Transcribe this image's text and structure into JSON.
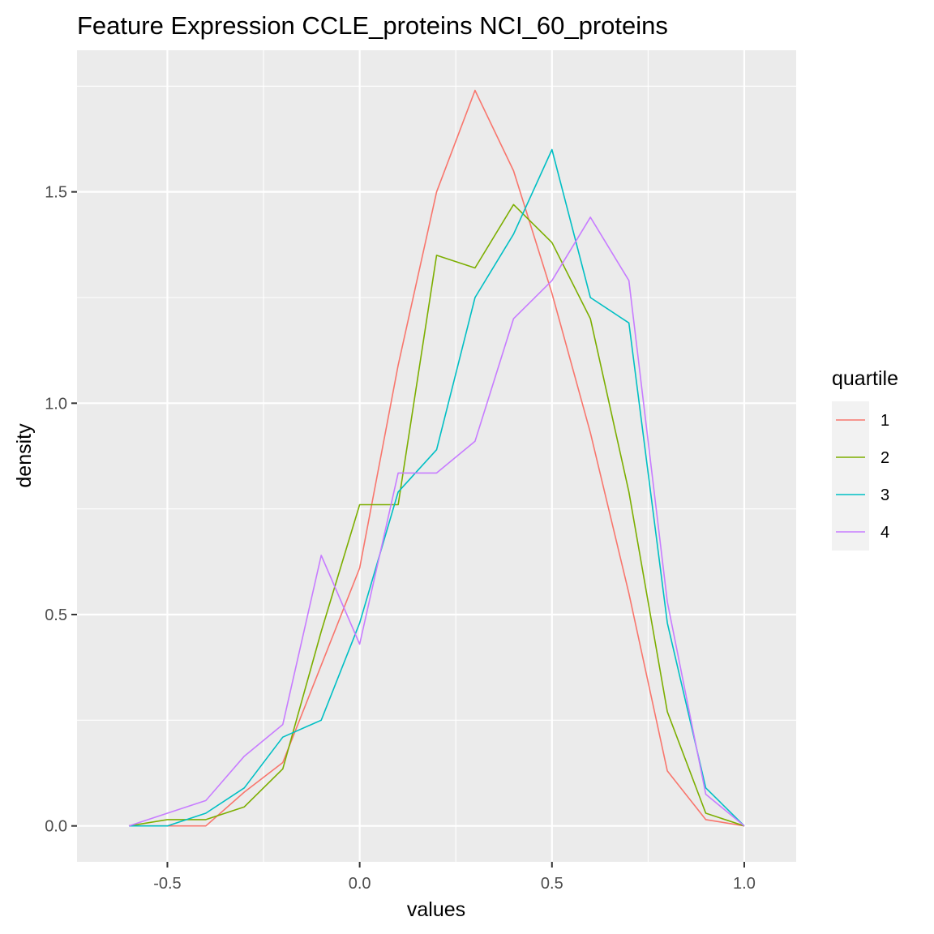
{
  "chart_data": {
    "type": "line",
    "title": "Feature Expression CCLE_proteins NCI_60_proteins",
    "xlabel": "values",
    "ylabel": "density",
    "xlim": [
      -0.735,
      1.135
    ],
    "ylim": [
      -0.085,
      1.835
    ],
    "x_ticks": [
      -0.5,
      0.0,
      0.5,
      1.0
    ],
    "x_tick_labels": [
      "-0.5",
      "0.0",
      "0.5",
      "1.0"
    ],
    "y_ticks": [
      0.0,
      0.5,
      1.0,
      1.5
    ],
    "y_tick_labels": [
      "0.0",
      "0.5",
      "1.0",
      "1.5"
    ],
    "grid": true,
    "legend": {
      "title": "quartile",
      "position": "right"
    },
    "x": [
      -0.6,
      -0.5,
      -0.4,
      -0.3,
      -0.2,
      -0.1,
      0.0,
      0.1,
      0.2,
      0.3,
      0.4,
      0.5,
      0.6,
      0.7,
      0.8,
      0.9,
      1.0
    ],
    "series": [
      {
        "name": "1",
        "color": "#F8766D",
        "values": [
          0.0,
          0.0,
          0.0,
          0.08,
          0.15,
          0.38,
          0.61,
          1.09,
          1.5,
          1.74,
          1.55,
          1.26,
          0.93,
          0.55,
          0.13,
          0.015,
          0.0
        ]
      },
      {
        "name": "2",
        "color": "#7CAE00",
        "values": [
          0.0,
          0.015,
          0.015,
          0.045,
          0.135,
          0.46,
          0.76,
          0.76,
          1.35,
          1.32,
          1.47,
          1.38,
          1.2,
          0.79,
          0.27,
          0.03,
          0.0
        ]
      },
      {
        "name": "3",
        "color": "#00BFC4",
        "values": [
          0.0,
          0.0,
          0.03,
          0.09,
          0.21,
          0.25,
          0.48,
          0.79,
          0.89,
          1.25,
          1.4,
          1.6,
          1.25,
          1.19,
          0.48,
          0.09,
          0.0
        ]
      },
      {
        "name": "4",
        "color": "#C77CFF",
        "values": [
          0.0,
          0.03,
          0.06,
          0.165,
          0.24,
          0.64,
          0.43,
          0.835,
          0.835,
          0.91,
          1.2,
          1.29,
          1.44,
          1.29,
          0.53,
          0.075,
          0.0
        ]
      }
    ]
  }
}
